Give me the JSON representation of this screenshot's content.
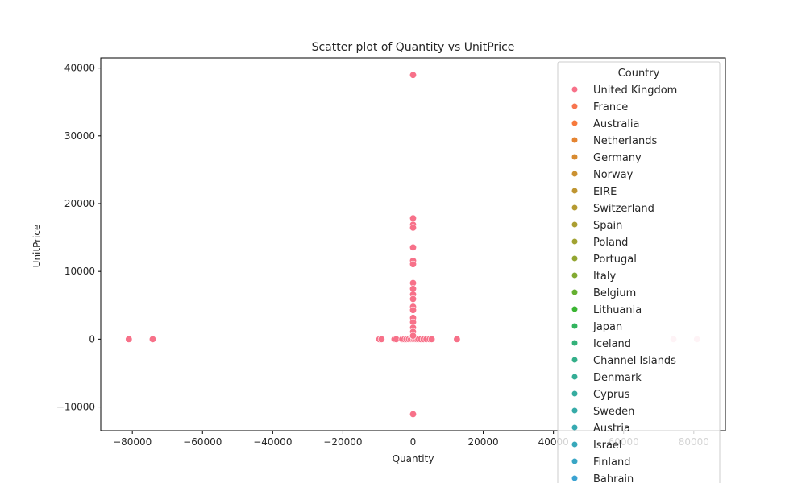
{
  "chart_data": {
    "type": "scatter",
    "title": "Scatter plot of Quantity vs UnitPrice",
    "xlabel": "Quantity",
    "ylabel": "UnitPrice",
    "xlim": [
      -89000,
      89000
    ],
    "ylim": [
      -13500,
      41500
    ],
    "xticks": [
      -80000,
      -60000,
      -40000,
      -20000,
      0,
      20000,
      40000,
      60000,
      80000
    ],
    "xtick_labels": [
      "−80000",
      "−60000",
      "−40000",
      "−20000",
      "0",
      "20000",
      "40000",
      "60000",
      "80000"
    ],
    "yticks": [
      -10000,
      0,
      10000,
      20000,
      30000,
      40000
    ],
    "ytick_labels": [
      "−10000",
      "0",
      "10000",
      "20000",
      "30000",
      "40000"
    ],
    "grid": false,
    "legend": {
      "title": "Country",
      "placement": "upper-right",
      "entries": [
        {
          "label": "United Kingdom",
          "color": "#f77189"
        },
        {
          "label": "France",
          "color": "#f7754f"
        },
        {
          "label": "Australia",
          "color": "#f77a3c"
        },
        {
          "label": "Netherlands",
          "color": "#e58431"
        },
        {
          "label": "Germany",
          "color": "#d88b31"
        },
        {
          "label": "Norway",
          "color": "#cb9131"
        },
        {
          "label": "EIRE",
          "color": "#bf9531"
        },
        {
          "label": "Switzerland",
          "color": "#b59a31"
        },
        {
          "label": "Spain",
          "color": "#ab9e31"
        },
        {
          "label": "Poland",
          "color": "#a1a231"
        },
        {
          "label": "Portugal",
          "color": "#93a631"
        },
        {
          "label": "Italy",
          "color": "#82aa31"
        },
        {
          "label": "Belgium",
          "color": "#65b031"
        },
        {
          "label": "Lithuania",
          "color": "#3ab532"
        },
        {
          "label": "Japan",
          "color": "#32b45e"
        },
        {
          "label": "Iceland",
          "color": "#33b179"
        },
        {
          "label": "Channel Islands",
          "color": "#34af89"
        },
        {
          "label": "Denmark",
          "color": "#35ad95"
        },
        {
          "label": "Cyprus",
          "color": "#35ac9f"
        },
        {
          "label": "Sweden",
          "color": "#36aba8"
        },
        {
          "label": "Austria",
          "color": "#37aab1"
        },
        {
          "label": "Israel",
          "color": "#38a8ba"
        },
        {
          "label": "Finland",
          "color": "#39a6c5"
        },
        {
          "label": "Bahrain",
          "color": "#3ba3d2"
        }
      ]
    },
    "series": [
      {
        "color": "#f77189",
        "points": [
          [
            -81000,
            0
          ],
          [
            -74200,
            0
          ],
          [
            -9600,
            0
          ],
          [
            -9000,
            0
          ],
          [
            -5300,
            0
          ],
          [
            -4800,
            0
          ],
          [
            -3100,
            0
          ],
          [
            -2500,
            0
          ],
          [
            -1900,
            0
          ],
          [
            -1200,
            0
          ],
          [
            -600,
            0
          ],
          [
            -200,
            0
          ],
          [
            200,
            0
          ],
          [
            600,
            0
          ],
          [
            1000,
            0
          ],
          [
            1500,
            0
          ],
          [
            2200,
            0
          ],
          [
            3000,
            0
          ],
          [
            3800,
            0
          ],
          [
            4700,
            0
          ],
          [
            5300,
            0
          ],
          [
            12500,
            0
          ],
          [
            0,
            38970
          ],
          [
            0,
            17840
          ],
          [
            0,
            16890
          ],
          [
            0,
            16450
          ],
          [
            0,
            13540
          ],
          [
            0,
            11590
          ],
          [
            0,
            11060
          ],
          [
            0,
            8290
          ],
          [
            0,
            7430
          ],
          [
            0,
            6600
          ],
          [
            0,
            5930
          ],
          [
            0,
            4790
          ],
          [
            0,
            4290
          ],
          [
            0,
            3150
          ],
          [
            0,
            2500
          ],
          [
            0,
            1700
          ],
          [
            0,
            1100
          ],
          [
            0,
            500
          ],
          [
            0,
            -11060
          ]
        ]
      },
      {
        "color": "#f9c4cf",
        "points": [
          [
            74200,
            0
          ],
          [
            80900,
            0
          ]
        ]
      }
    ]
  }
}
